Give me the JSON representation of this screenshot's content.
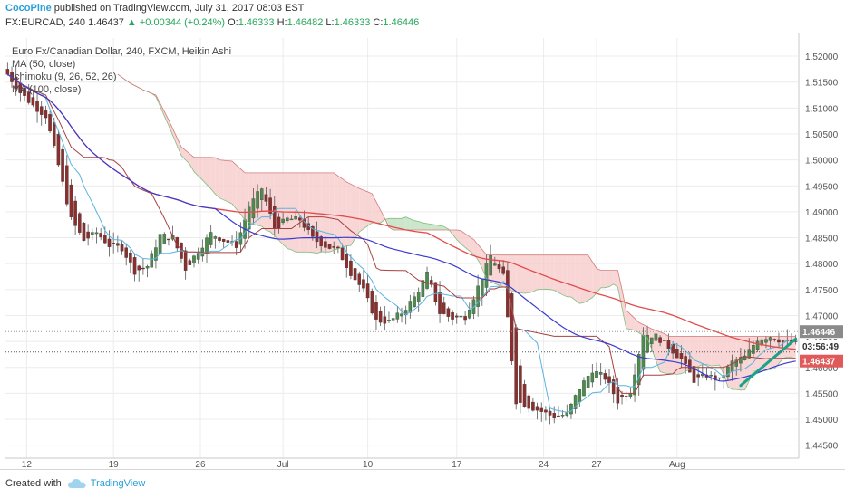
{
  "header": {
    "author": "CocoPine",
    "published_text": "published on TradingView.com, July 31, 2017 08:03 EST",
    "symbol": "FX:EURCAD, 240",
    "last": "1.46437",
    "change": "+0.00344 (+0.24%)",
    "o_label": "O:",
    "o_value": "1.46333",
    "h_label": "H:",
    "h_value": "1.46482",
    "l_label": "L:",
    "l_value": "1.46333",
    "c_label": "C:",
    "c_value": "1.46446"
  },
  "legend": {
    "title": "Euro Fx/Canadian Dollar, 240, FXCM, Heikin Ashi",
    "ma50": "MA (50, close)",
    "ichimoku": "Ichimoku (9, 26, 52, 26)",
    "ma100": "MA (100, close)"
  },
  "footer": {
    "created_with": "Created with",
    "brand": "TradingView"
  },
  "colors": {
    "bull": "#4d8a4d",
    "bear": "#8b2e2e",
    "ma50": "#3b3bd1",
    "ma100": "#e24b4b",
    "tenkan": "#5ab4e0",
    "kijun": "#a84040",
    "cloud_bull": "#b9ddb9",
    "cloud_bear": "#f7c8c8",
    "trendline": "#1aa38a",
    "tag_price": "#e05a5a",
    "tag_last": "#8a8a8a"
  },
  "chart_data": {
    "type": "candlestick",
    "x_ticks": [
      "12",
      "19",
      "26",
      "Jul",
      "10",
      "17",
      "24",
      "27",
      "Aug"
    ],
    "y_ticks": [
      "1.52000",
      "1.51500",
      "1.51000",
      "1.50500",
      "1.50000",
      "1.49500",
      "1.49000",
      "1.48500",
      "1.48000",
      "1.47500",
      "1.47000",
      "1.46500",
      "1.46000",
      "1.45500",
      "1.45000",
      "1.44500"
    ],
    "ylim": [
      1.4425,
      1.5235
    ],
    "price_tags": {
      "close": "1.46446",
      "countdown": "03:56:49",
      "last": "1.46437"
    },
    "anchors": [
      [
        0,
        1.5165
      ],
      [
        3,
        1.513
      ],
      [
        6,
        1.5105
      ],
      [
        9,
        1.5085
      ],
      [
        12,
        1.499
      ],
      [
        15,
        1.4885
      ],
      [
        18,
        1.4845
      ],
      [
        21,
        1.486
      ],
      [
        24,
        1.4835
      ],
      [
        27,
        1.483
      ],
      [
        30,
        1.4785
      ],
      [
        33,
        1.4795
      ],
      [
        36,
        1.4855
      ],
      [
        39,
        1.485
      ],
      [
        42,
        1.479
      ],
      [
        45,
        1.4825
      ],
      [
        48,
        1.4858
      ],
      [
        51,
        1.4845
      ],
      [
        54,
        1.4835
      ],
      [
        57,
        1.491
      ],
      [
        60,
        1.4945
      ],
      [
        63,
        1.4868
      ],
      [
        66,
        1.4886
      ],
      [
        69,
        1.4885
      ],
      [
        72,
        1.4848
      ],
      [
        75,
        1.4834
      ],
      [
        78,
        1.4825
      ],
      [
        81,
        1.4782
      ],
      [
        84,
        1.4748
      ],
      [
        87,
        1.469
      ],
      [
        90,
        1.4688
      ],
      [
        93,
        1.4705
      ],
      [
        96,
        1.4735
      ],
      [
        99,
        1.478
      ],
      [
        102,
        1.4705
      ],
      [
        105,
        1.4695
      ],
      [
        108,
        1.4698
      ],
      [
        111,
        1.4755
      ],
      [
        114,
        1.4815
      ],
      [
        117,
        1.4775
      ],
      [
        120,
        1.4535
      ],
      [
        123,
        1.4525
      ],
      [
        126,
        1.4515
      ],
      [
        129,
        1.4505
      ],
      [
        132,
        1.451
      ],
      [
        135,
        1.456
      ],
      [
        138,
        1.4595
      ],
      [
        141,
        1.458
      ],
      [
        144,
        1.4535
      ],
      [
        147,
        1.4555
      ],
      [
        150,
        1.4665
      ],
      [
        153,
        1.466
      ],
      [
        156,
        1.464
      ],
      [
        159,
        1.4615
      ],
      [
        162,
        1.4575
      ],
      [
        165,
        1.4585
      ],
      [
        168,
        1.4575
      ],
      [
        171,
        1.461
      ],
      [
        174,
        1.462
      ],
      [
        177,
        1.4655
      ],
      [
        180,
        1.466
      ],
      [
        183,
        1.465
      ],
      [
        186,
        1.4646
      ]
    ],
    "trendline": [
      [
        173,
        1.4565
      ],
      [
        186,
        1.4655
      ]
    ]
  }
}
